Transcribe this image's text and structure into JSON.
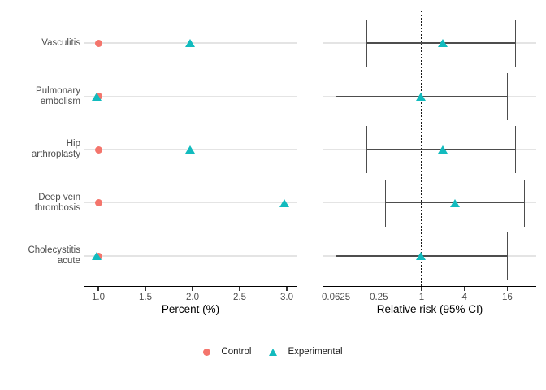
{
  "colors": {
    "control": "#F4756C",
    "experimental": "#12BBBE",
    "gridline": "#E4E4E4",
    "ci_bar": "#4D4D4D",
    "axis": "#000000",
    "tick_label": "#4D4D4D",
    "category_label": "#4D4D4D"
  },
  "chart_data": [
    {
      "type": "scatter",
      "title": "",
      "xlabel": "Percent (%)",
      "ylabel": "",
      "categories": [
        "Vasculitis",
        "Pulmonary embolism",
        "Hip arthroplasty",
        "Deep vein thrombosis",
        "Cholecystitis acute"
      ],
      "category_lines": [
        [
          "Vasculitis"
        ],
        [
          "Pulmonary",
          "embolism"
        ],
        [
          "Hip",
          "arthroplasty"
        ],
        [
          "Deep vein",
          "thrombosis"
        ],
        [
          "Cholecystitis",
          "acute"
        ]
      ],
      "series": [
        {
          "name": "Control",
          "marker": "circle",
          "color": "#F4756C",
          "values": [
            1.0,
            1.0,
            1.0,
            1.0,
            1.0
          ]
        },
        {
          "name": "Experimental",
          "marker": "triangle",
          "color": "#12BBBE",
          "values": [
            1.97,
            0.98,
            1.97,
            2.97,
            0.98
          ]
        }
      ],
      "xticks": [
        1.0,
        1.5,
        2.0,
        2.5,
        3.0
      ],
      "xtick_labels": [
        "1.0",
        "1.5",
        "2.0",
        "2.5",
        "3.0"
      ],
      "xlim": [
        0.85,
        3.1
      ],
      "grid": "horizontal-only",
      "legend_position": "bottom"
    },
    {
      "type": "forest",
      "title": "",
      "xlabel": "Relative risk (95% CI)",
      "ylabel": "",
      "categories": [
        "Vasculitis",
        "Pulmonary embolism",
        "Hip arthroplasty",
        "Deep vein thrombosis",
        "Cholecystitis acute"
      ],
      "points": [
        1.97,
        0.97,
        1.97,
        2.97,
        0.97
      ],
      "ci_low": [
        0.17,
        0.0625,
        0.17,
        0.31,
        0.0625
      ],
      "ci_high": [
        21,
        16,
        21,
        28,
        16
      ],
      "xticks": [
        0.0625,
        0.25,
        1,
        4,
        16
      ],
      "xtick_labels": [
        "0.0625",
        "0.25",
        "1",
        "4",
        "16"
      ],
      "xscale": "log4",
      "xlim": [
        0.042,
        40
      ],
      "reference_line": 1,
      "marker": "triangle",
      "marker_color": "#12BBBE",
      "grid": "horizontal-only"
    }
  ],
  "legend": {
    "items": [
      {
        "label": "Control",
        "marker": "circle",
        "color": "#F4756C"
      },
      {
        "label": "Experimental",
        "marker": "triangle",
        "color": "#12BBBE"
      }
    ]
  }
}
